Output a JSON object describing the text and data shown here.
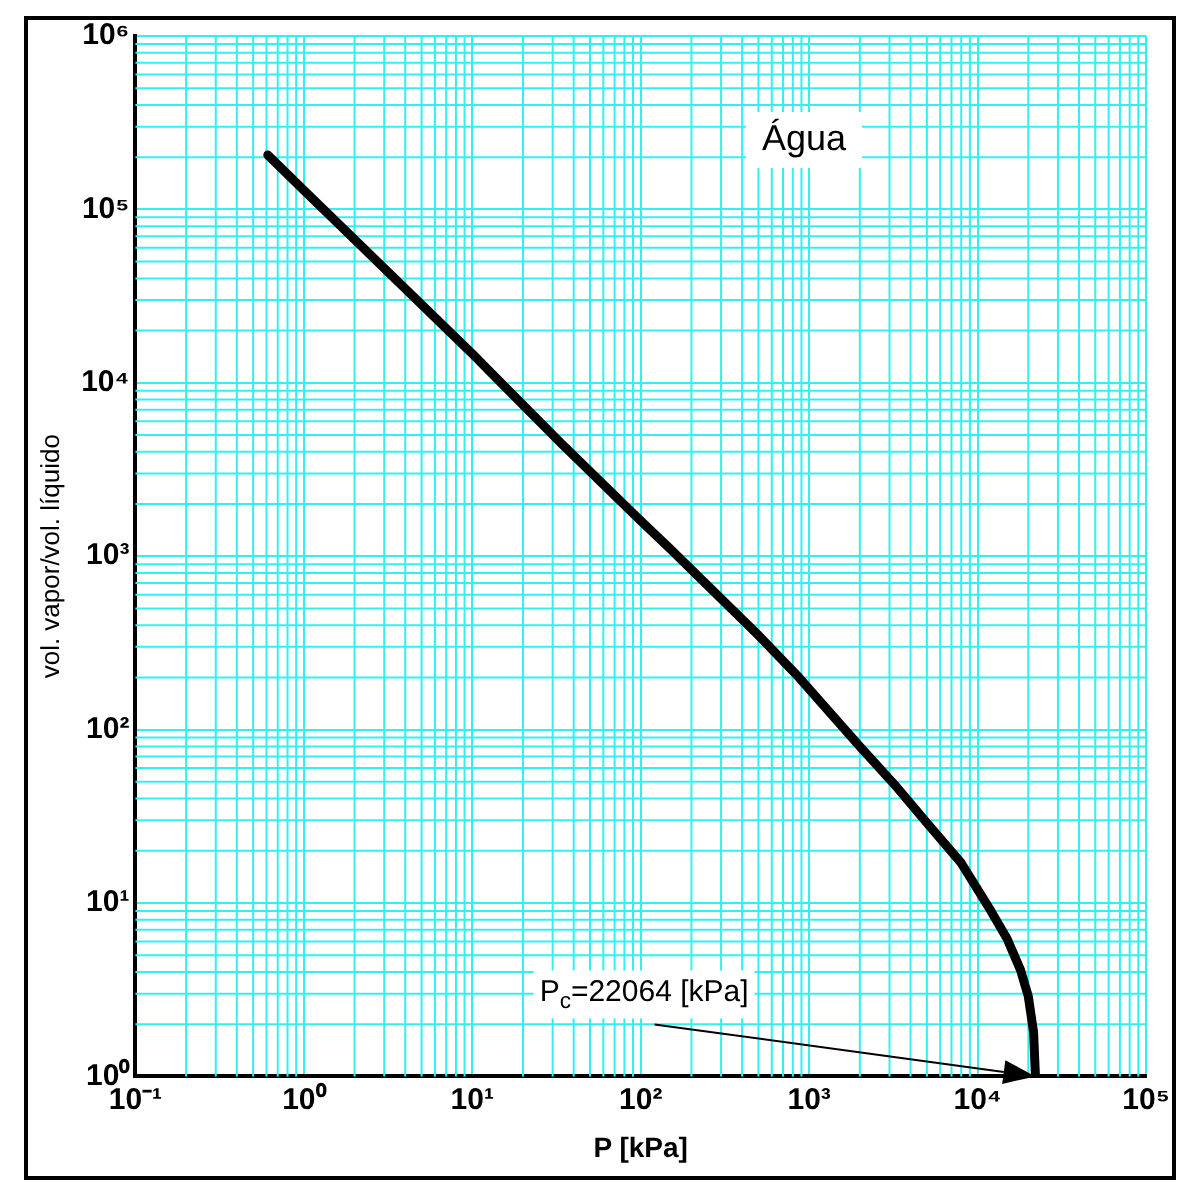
{
  "chart_data": {
    "type": "line",
    "xlabel": "P [kPa]",
    "ylabel": "vol. vapor/vol. líquido",
    "x": [
      0.611,
      1,
      10,
      33.5,
      100,
      150,
      500,
      870,
      2000,
      3350,
      5000,
      8000,
      12000,
      15000,
      18000,
      20000,
      21500,
      22064
    ],
    "values": [
      206000,
      129000,
      14700,
      4500,
      1600,
      1100,
      350,
      200,
      80,
      46,
      29,
      17,
      9,
      6.2,
      4.1,
      2.9,
      1.8,
      1
    ],
    "color": "#000000",
    "xlim": [
      0.1,
      100000
    ],
    "ylim": [
      1,
      1000000
    ],
    "xticks": [
      {
        "value": 0.1,
        "label": "10⁻¹"
      },
      {
        "value": 1,
        "label": "10⁰"
      },
      {
        "value": 10,
        "label": "10¹"
      },
      {
        "value": 100,
        "label": "10²"
      },
      {
        "value": 1000,
        "label": "10³"
      },
      {
        "value": 10000,
        "label": "10⁴"
      },
      {
        "value": 100000,
        "label": "10⁵"
      }
    ],
    "yticks": [
      {
        "value": 1,
        "label": "10⁰"
      },
      {
        "value": 10,
        "label": "10¹"
      },
      {
        "value": 100,
        "label": "10²"
      },
      {
        "value": 1000,
        "label": "10³"
      },
      {
        "value": 10000,
        "label": "10⁴"
      },
      {
        "value": 100000,
        "label": "10⁵"
      },
      {
        "value": 1000000,
        "label": "10⁶"
      }
    ],
    "log": "xy",
    "grid": true,
    "legend": false,
    "marker": "none",
    "line_style": "solid",
    "annotations": [
      "Água",
      "P$_{c}$=22064 [kPa]"
    ]
  }
}
